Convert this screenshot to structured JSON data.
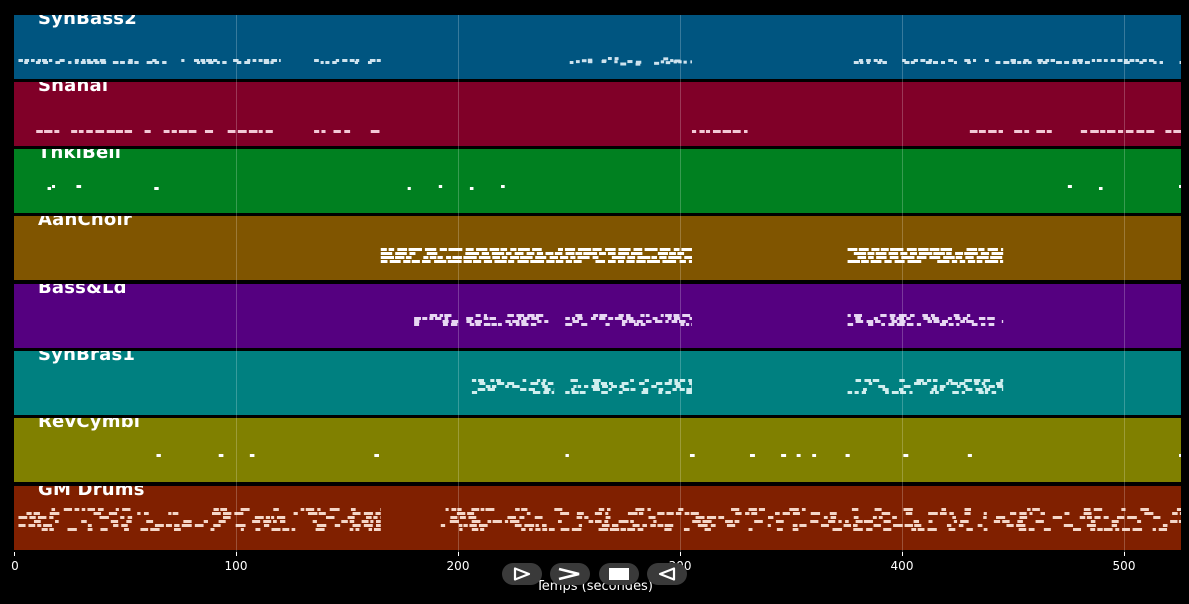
{
  "tracks": [
    {
      "name": "SynBass2",
      "color": "#005580",
      "note_color": "#cfe3ee"
    },
    {
      "name": "Shanai",
      "color": "#800028",
      "note_color": "#f3c9d6"
    },
    {
      "name": "TnklBell",
      "color": "#008020",
      "note_color": "#ffffff"
    },
    {
      "name": "AahChoir",
      "color": "#805500",
      "note_color": "#ffffff"
    },
    {
      "name": "Bass&Ld",
      "color": "#550080",
      "note_color": "#e6d6f2"
    },
    {
      "name": "SynBras1",
      "color": "#008080",
      "note_color": "#cfeeee"
    },
    {
      "name": "RevCymbl",
      "color": "#808000",
      "note_color": "#ffffff"
    },
    {
      "name": "GM Drums",
      "color": "#802000",
      "note_color": "#f4d6c8"
    }
  ],
  "x_axis": {
    "label": "Temps (secondes)",
    "ticks": [
      "0",
      "100",
      "200",
      "300",
      "400",
      "500"
    ],
    "max_seconds": 525
  },
  "playback_controls": [
    {
      "name": "play",
      "icon": "play-outline-icon"
    },
    {
      "name": "fast-forward",
      "icon": "chevron-right-icon"
    },
    {
      "name": "stop",
      "icon": "stop-icon"
    },
    {
      "name": "rewind",
      "icon": "rewind-outline-icon"
    }
  ]
}
